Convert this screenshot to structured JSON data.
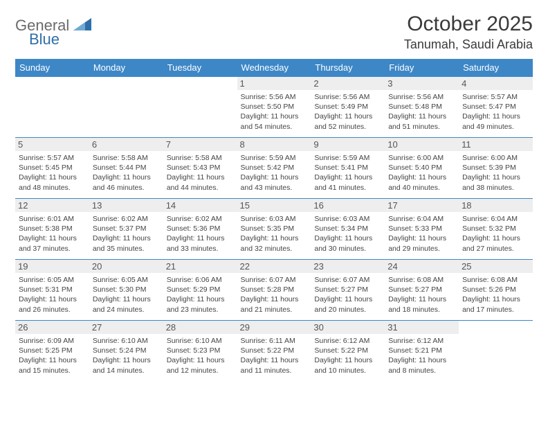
{
  "logo": {
    "part1": "General",
    "part2": "Blue"
  },
  "title": "October 2025",
  "location": "Tanumah, Saudi Arabia",
  "colors": {
    "header_bg": "#3d87c7",
    "header_text": "#ffffff",
    "daynum_bg": "#eeeeee",
    "border": "#3d87c7",
    "logo_gray": "#6a6a6a",
    "logo_blue": "#2f6fa8"
  },
  "weekdays": [
    "Sunday",
    "Monday",
    "Tuesday",
    "Wednesday",
    "Thursday",
    "Friday",
    "Saturday"
  ],
  "weeks": [
    [
      {
        "day": "",
        "lines": []
      },
      {
        "day": "",
        "lines": []
      },
      {
        "day": "",
        "lines": []
      },
      {
        "day": "1",
        "lines": [
          "Sunrise: 5:56 AM",
          "Sunset: 5:50 PM",
          "Daylight: 11 hours and 54 minutes."
        ]
      },
      {
        "day": "2",
        "lines": [
          "Sunrise: 5:56 AM",
          "Sunset: 5:49 PM",
          "Daylight: 11 hours and 52 minutes."
        ]
      },
      {
        "day": "3",
        "lines": [
          "Sunrise: 5:56 AM",
          "Sunset: 5:48 PM",
          "Daylight: 11 hours and 51 minutes."
        ]
      },
      {
        "day": "4",
        "lines": [
          "Sunrise: 5:57 AM",
          "Sunset: 5:47 PM",
          "Daylight: 11 hours and 49 minutes."
        ]
      }
    ],
    [
      {
        "day": "5",
        "lines": [
          "Sunrise: 5:57 AM",
          "Sunset: 5:45 PM",
          "Daylight: 11 hours and 48 minutes."
        ]
      },
      {
        "day": "6",
        "lines": [
          "Sunrise: 5:58 AM",
          "Sunset: 5:44 PM",
          "Daylight: 11 hours and 46 minutes."
        ]
      },
      {
        "day": "7",
        "lines": [
          "Sunrise: 5:58 AM",
          "Sunset: 5:43 PM",
          "Daylight: 11 hours and 44 minutes."
        ]
      },
      {
        "day": "8",
        "lines": [
          "Sunrise: 5:59 AM",
          "Sunset: 5:42 PM",
          "Daylight: 11 hours and 43 minutes."
        ]
      },
      {
        "day": "9",
        "lines": [
          "Sunrise: 5:59 AM",
          "Sunset: 5:41 PM",
          "Daylight: 11 hours and 41 minutes."
        ]
      },
      {
        "day": "10",
        "lines": [
          "Sunrise: 6:00 AM",
          "Sunset: 5:40 PM",
          "Daylight: 11 hours and 40 minutes."
        ]
      },
      {
        "day": "11",
        "lines": [
          "Sunrise: 6:00 AM",
          "Sunset: 5:39 PM",
          "Daylight: 11 hours and 38 minutes."
        ]
      }
    ],
    [
      {
        "day": "12",
        "lines": [
          "Sunrise: 6:01 AM",
          "Sunset: 5:38 PM",
          "Daylight: 11 hours and 37 minutes."
        ]
      },
      {
        "day": "13",
        "lines": [
          "Sunrise: 6:02 AM",
          "Sunset: 5:37 PM",
          "Daylight: 11 hours and 35 minutes."
        ]
      },
      {
        "day": "14",
        "lines": [
          "Sunrise: 6:02 AM",
          "Sunset: 5:36 PM",
          "Daylight: 11 hours and 33 minutes."
        ]
      },
      {
        "day": "15",
        "lines": [
          "Sunrise: 6:03 AM",
          "Sunset: 5:35 PM",
          "Daylight: 11 hours and 32 minutes."
        ]
      },
      {
        "day": "16",
        "lines": [
          "Sunrise: 6:03 AM",
          "Sunset: 5:34 PM",
          "Daylight: 11 hours and 30 minutes."
        ]
      },
      {
        "day": "17",
        "lines": [
          "Sunrise: 6:04 AM",
          "Sunset: 5:33 PM",
          "Daylight: 11 hours and 29 minutes."
        ]
      },
      {
        "day": "18",
        "lines": [
          "Sunrise: 6:04 AM",
          "Sunset: 5:32 PM",
          "Daylight: 11 hours and 27 minutes."
        ]
      }
    ],
    [
      {
        "day": "19",
        "lines": [
          "Sunrise: 6:05 AM",
          "Sunset: 5:31 PM",
          "Daylight: 11 hours and 26 minutes."
        ]
      },
      {
        "day": "20",
        "lines": [
          "Sunrise: 6:05 AM",
          "Sunset: 5:30 PM",
          "Daylight: 11 hours and 24 minutes."
        ]
      },
      {
        "day": "21",
        "lines": [
          "Sunrise: 6:06 AM",
          "Sunset: 5:29 PM",
          "Daylight: 11 hours and 23 minutes."
        ]
      },
      {
        "day": "22",
        "lines": [
          "Sunrise: 6:07 AM",
          "Sunset: 5:28 PM",
          "Daylight: 11 hours and 21 minutes."
        ]
      },
      {
        "day": "23",
        "lines": [
          "Sunrise: 6:07 AM",
          "Sunset: 5:27 PM",
          "Daylight: 11 hours and 20 minutes."
        ]
      },
      {
        "day": "24",
        "lines": [
          "Sunrise: 6:08 AM",
          "Sunset: 5:27 PM",
          "Daylight: 11 hours and 18 minutes."
        ]
      },
      {
        "day": "25",
        "lines": [
          "Sunrise: 6:08 AM",
          "Sunset: 5:26 PM",
          "Daylight: 11 hours and 17 minutes."
        ]
      }
    ],
    [
      {
        "day": "26",
        "lines": [
          "Sunrise: 6:09 AM",
          "Sunset: 5:25 PM",
          "Daylight: 11 hours and 15 minutes."
        ]
      },
      {
        "day": "27",
        "lines": [
          "Sunrise: 6:10 AM",
          "Sunset: 5:24 PM",
          "Daylight: 11 hours and 14 minutes."
        ]
      },
      {
        "day": "28",
        "lines": [
          "Sunrise: 6:10 AM",
          "Sunset: 5:23 PM",
          "Daylight: 11 hours and 12 minutes."
        ]
      },
      {
        "day": "29",
        "lines": [
          "Sunrise: 6:11 AM",
          "Sunset: 5:22 PM",
          "Daylight: 11 hours and 11 minutes."
        ]
      },
      {
        "day": "30",
        "lines": [
          "Sunrise: 6:12 AM",
          "Sunset: 5:22 PM",
          "Daylight: 11 hours and 10 minutes."
        ]
      },
      {
        "day": "31",
        "lines": [
          "Sunrise: 6:12 AM",
          "Sunset: 5:21 PM",
          "Daylight: 11 hours and 8 minutes."
        ]
      },
      {
        "day": "",
        "lines": []
      }
    ]
  ]
}
